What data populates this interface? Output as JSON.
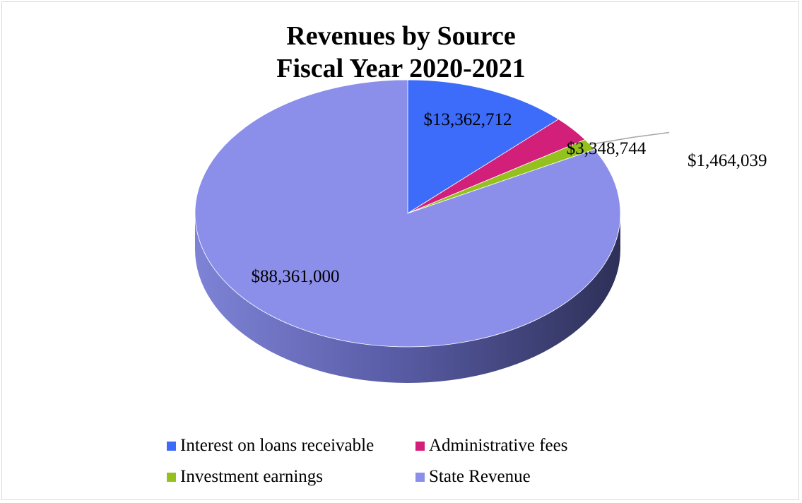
{
  "chart_data": {
    "type": "pie",
    "style": "3d",
    "title": [
      "Revenues by Source",
      "Fiscal Year 2020-2021"
    ],
    "labels": [
      "Interest on loans receivable",
      "Administrative fees",
      "Investment earnings",
      "State Revenue"
    ],
    "values": [
      13362712,
      3348744,
      1464039,
      88361000
    ],
    "value_labels": [
      "$13,362,712",
      "$3,348,744",
      "$1,464,039",
      "$88,361,000"
    ],
    "colors": [
      "#3D6BFA",
      "#D21F7A",
      "#95C11F",
      "#8B8FEA"
    ],
    "start_angle_deg": 0,
    "direction": "clockwise",
    "legend_position": "bottom"
  }
}
